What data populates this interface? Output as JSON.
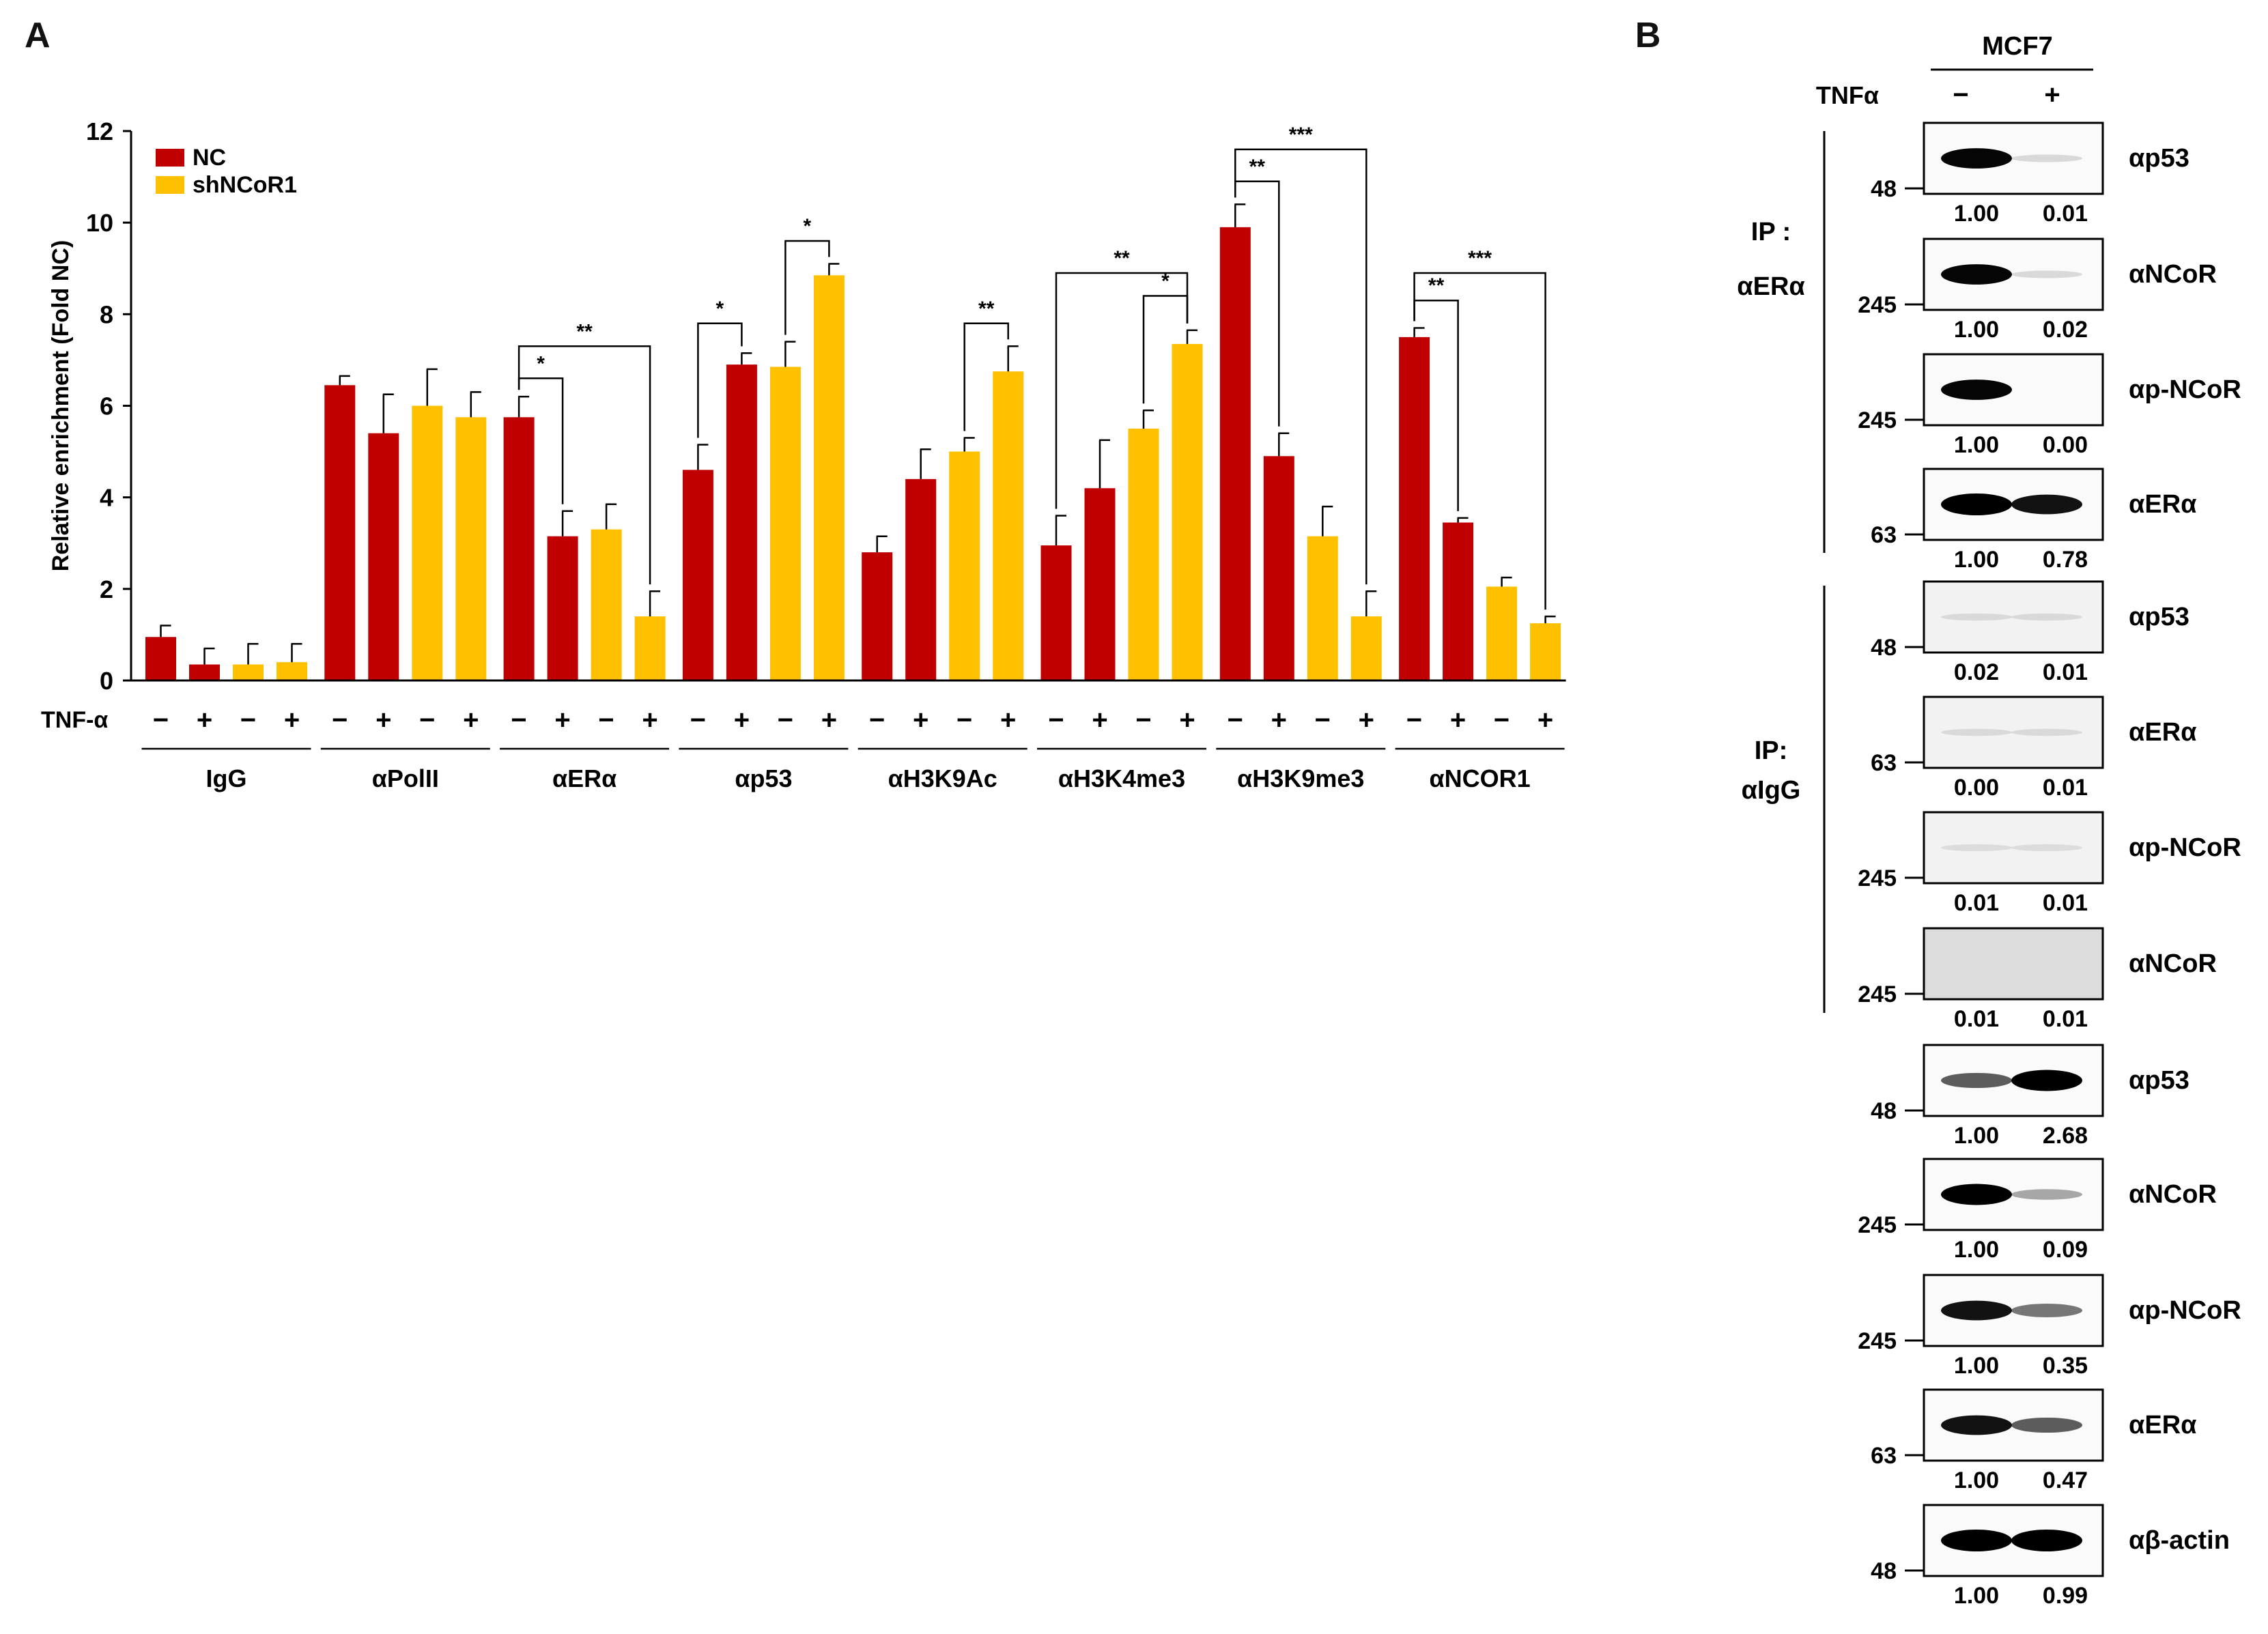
{
  "panel_a": {
    "letter": "A"
  },
  "panel_b": {
    "letter": "B"
  },
  "chart_data": {
    "type": "bar",
    "ylabel": "Relative enrichment (Fold NC)",
    "xlabel": "",
    "ylim": [
      0,
      12
    ],
    "yticks": [
      "0",
      "2",
      "4",
      "6",
      "8",
      "10",
      "12"
    ],
    "grid": false,
    "legend_position": "top-left",
    "treatment_label": "TNF-α",
    "condition_signs": [
      "−",
      "+",
      "−",
      "+"
    ],
    "colors": {
      "NC": "#c00000",
      "shNCoR1": "#ffc000"
    },
    "legend": [
      {
        "name": "NC",
        "color": "#c00000"
      },
      {
        "name": "shNCoR1",
        "color": "#ffc000"
      }
    ],
    "groups": [
      {
        "label": "IgG",
        "bars": [
          {
            "s": "NC",
            "v": 0.95,
            "e": 0.25
          },
          {
            "s": "NC",
            "v": 0.35,
            "e": 0.35
          },
          {
            "s": "shNCoR1",
            "v": 0.35,
            "e": 0.45
          },
          {
            "s": "shNCoR1",
            "v": 0.4,
            "e": 0.4
          }
        ]
      },
      {
        "label": "αPolII",
        "bars": [
          {
            "s": "NC",
            "v": 6.45,
            "e": 0.2
          },
          {
            "s": "NC",
            "v": 5.4,
            "e": 0.85
          },
          {
            "s": "shNCoR1",
            "v": 6.0,
            "e": 0.8
          },
          {
            "s": "shNCoR1",
            "v": 5.75,
            "e": 0.55
          }
        ]
      },
      {
        "label": "αERα",
        "bars": [
          {
            "s": "NC",
            "v": 5.75,
            "e": 0.45
          },
          {
            "s": "NC",
            "v": 3.15,
            "e": 0.55
          },
          {
            "s": "shNCoR1",
            "v": 3.3,
            "e": 0.55
          },
          {
            "s": "shNCoR1",
            "v": 1.4,
            "e": 0.55
          }
        ]
      },
      {
        "label": "αp53",
        "bars": [
          {
            "s": "NC",
            "v": 4.6,
            "e": 0.55
          },
          {
            "s": "NC",
            "v": 6.9,
            "e": 0.25
          },
          {
            "s": "shNCoR1",
            "v": 6.85,
            "e": 0.55
          },
          {
            "s": "shNCoR1",
            "v": 8.85,
            "e": 0.25
          }
        ]
      },
      {
        "label": "αH3K9Ac",
        "bars": [
          {
            "s": "NC",
            "v": 2.8,
            "e": 0.35
          },
          {
            "s": "NC",
            "v": 4.4,
            "e": 0.65
          },
          {
            "s": "shNCoR1",
            "v": 5.0,
            "e": 0.3
          },
          {
            "s": "shNCoR1",
            "v": 6.75,
            "e": 0.55
          }
        ]
      },
      {
        "label": "αH3K4me3",
        "bars": [
          {
            "s": "NC",
            "v": 2.95,
            "e": 0.65
          },
          {
            "s": "NC",
            "v": 4.2,
            "e": 1.05
          },
          {
            "s": "shNCoR1",
            "v": 5.5,
            "e": 0.4
          },
          {
            "s": "shNCoR1",
            "v": 7.35,
            "e": 0.3
          }
        ]
      },
      {
        "label": "αH3K9me3",
        "bars": [
          {
            "s": "NC",
            "v": 9.9,
            "e": 0.5
          },
          {
            "s": "NC",
            "v": 4.9,
            "e": 0.5
          },
          {
            "s": "shNCoR1",
            "v": 3.15,
            "e": 0.65
          },
          {
            "s": "shNCoR1",
            "v": 1.4,
            "e": 0.55
          }
        ]
      },
      {
        "label": "αNCOR1",
        "bars": [
          {
            "s": "NC",
            "v": 7.5,
            "e": 0.2
          },
          {
            "s": "NC",
            "v": 3.45,
            "e": 0.1
          },
          {
            "s": "shNCoR1",
            "v": 2.05,
            "e": 0.2
          },
          {
            "s": "shNCoR1",
            "v": 1.25,
            "e": 0.15
          }
        ]
      }
    ],
    "significance": [
      {
        "group": 2,
        "from": 0,
        "to": 1,
        "label": "*",
        "level": 6.6
      },
      {
        "group": 2,
        "from": 0,
        "to": 3,
        "label": "**",
        "level": 7.3
      },
      {
        "group": 3,
        "from": 0,
        "to": 1,
        "label": "*",
        "level": 7.8
      },
      {
        "group": 3,
        "from": 2,
        "to": 3,
        "label": "*",
        "level": 9.6
      },
      {
        "group": 4,
        "from": 2,
        "to": 3,
        "label": "**",
        "level": 7.8
      },
      {
        "group": 5,
        "from": 2,
        "to": 3,
        "label": "*",
        "level": 8.4
      },
      {
        "group": 5,
        "from": 0,
        "to": 3,
        "label": "**",
        "level": 8.9
      },
      {
        "group": 6,
        "from": 0,
        "to": 1,
        "label": "**",
        "level": 10.9
      },
      {
        "group": 6,
        "from": 0,
        "to": 3,
        "label": "***",
        "level": 11.6
      },
      {
        "group": 7,
        "from": 0,
        "to": 1,
        "label": "**",
        "level": 8.3
      },
      {
        "group": 7,
        "from": 0,
        "to": 3,
        "label": "***",
        "level": 8.9
      }
    ]
  },
  "western": {
    "cell_line": "MCF7",
    "treatment_label": "TNFα",
    "signs": [
      "−",
      "+"
    ],
    "ip_era_label_1": "IP  :",
    "ip_era_label_2": "αERα",
    "ip_igg_label_1": "IP:",
    "ip_igg_label_2": "αIgG",
    "blots": [
      {
        "section": "ip-era",
        "mw": "48",
        "name": "αp53",
        "q": [
          "1.00",
          "0.01"
        ],
        "i": [
          0.9,
          0.05
        ]
      },
      {
        "section": "ip-era",
        "mw": "245",
        "name": "αNCoR",
        "q": [
          "1.00",
          "0.02"
        ],
        "i": [
          0.9,
          0.05
        ]
      },
      {
        "section": "ip-era",
        "mw": "245",
        "name": "αp-NCoR",
        "q": [
          "1.00",
          "0.00"
        ],
        "i": [
          0.9,
          0.0
        ]
      },
      {
        "section": "ip-era",
        "mw": "63",
        "name": "αERα",
        "q": [
          "1.00",
          "0.78"
        ],
        "i": [
          1.0,
          0.85
        ]
      },
      {
        "section": "ip-igg",
        "mw": "48",
        "name": "αp53",
        "q": [
          "0.02",
          "0.01"
        ],
        "i": [
          0.02,
          0.02
        ]
      },
      {
        "section": "ip-igg",
        "mw": "63",
        "name": "αERα",
        "q": [
          "0.00",
          "0.01"
        ],
        "i": [
          0.02,
          0.02
        ]
      },
      {
        "section": "ip-igg",
        "mw": "245",
        "name": "αp-NCoR",
        "q": [
          "0.01",
          "0.01"
        ],
        "i": [
          0.01,
          0.01
        ]
      },
      {
        "section": "ip-igg",
        "mw": "245",
        "name": "αNCoR",
        "q": [
          "0.01",
          "0.01"
        ],
        "i": [
          0.0,
          0.0
        ]
      },
      {
        "section": "input",
        "mw": "48",
        "name": "αp53",
        "q": [
          "1.00",
          "2.68"
        ],
        "i": [
          0.55,
          0.95
        ]
      },
      {
        "section": "input",
        "mw": "245",
        "name": "αNCoR",
        "q": [
          "1.00",
          "0.09"
        ],
        "i": [
          0.95,
          0.25
        ]
      },
      {
        "section": "input",
        "mw": "245",
        "name": "αp-NCoR",
        "q": [
          "1.00",
          "0.35"
        ],
        "i": [
          0.85,
          0.45
        ]
      },
      {
        "section": "input",
        "mw": "63",
        "name": "αERα",
        "q": [
          "1.00",
          "0.47"
        ],
        "i": [
          0.85,
          0.55
        ]
      },
      {
        "section": "input",
        "mw": "48",
        "name": "αβ-actin",
        "q": [
          "1.00",
          "0.99"
        ],
        "i": [
          1.0,
          1.0
        ]
      }
    ]
  }
}
